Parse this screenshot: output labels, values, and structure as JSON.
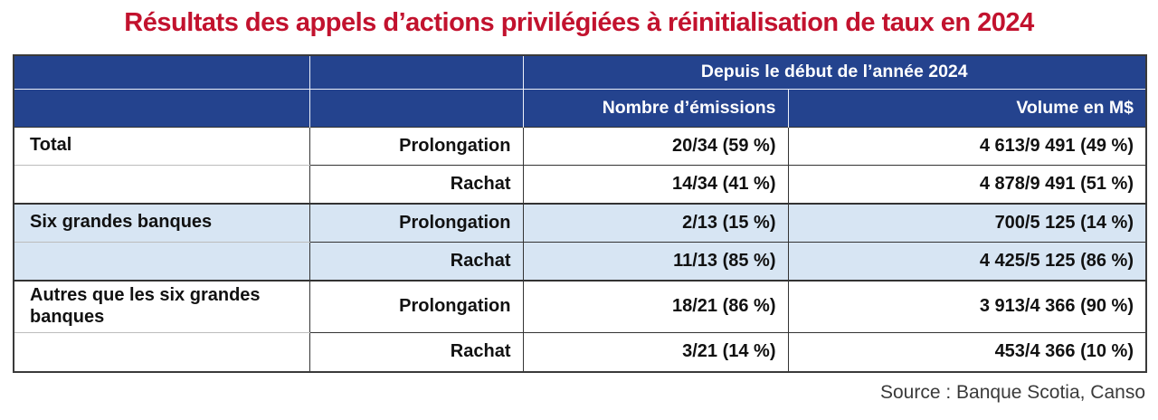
{
  "title": "Résultats des appels d’actions privilégiées à réinitialisation de taux en 2024",
  "source": "Source : Banque Scotia, Canso",
  "colors": {
    "title_red": "#C2122E",
    "header_blue": "#24438E",
    "shaded_row_blue": "#D7E5F3",
    "border_dark": "#3A3A3A"
  },
  "table": {
    "header": {
      "group_label": "Depuis le début de l’année 2024",
      "col_emissions": "Nombre d’émissions",
      "col_volume": "Volume en M$"
    },
    "groups": [
      {
        "label": "Total",
        "shaded": false,
        "rows": [
          {
            "type": "Prolongation",
            "emissions": "20/34 (59 %)",
            "volume": "4 613/9 491 (49 %)"
          },
          {
            "type": "Rachat",
            "emissions": "14/34 (41 %)",
            "volume": "4 878/9 491 (51 %)"
          }
        ]
      },
      {
        "label": "Six grandes banques",
        "shaded": true,
        "rows": [
          {
            "type": "Prolongation",
            "emissions": "2/13 (15 %)",
            "volume": "700/5 125 (14 %)"
          },
          {
            "type": "Rachat",
            "emissions": "11/13 (85 %)",
            "volume": "4 425/5 125 (86 %)"
          }
        ]
      },
      {
        "label": "Autres que les six grandes banques",
        "shaded": false,
        "rows": [
          {
            "type": "Prolongation",
            "emissions": "18/21 (86 %)",
            "volume": "3 913/4 366 (90 %)"
          },
          {
            "type": "Rachat",
            "emissions": "3/21 (14 %)",
            "volume": "453/4 366 (10 %)"
          }
        ]
      }
    ]
  },
  "chart_data": {
    "type": "table",
    "title": "Résultats des appels d’actions privilégiées à réinitialisation de taux en 2024",
    "column_group_header": "Depuis le début de l’année 2024",
    "columns": [
      "",
      "",
      "Nombre d’émissions",
      "Volume en M$"
    ],
    "rows": [
      [
        "Total",
        "Prolongation",
        "20/34 (59 %)",
        "4 613/9 491 (49 %)"
      ],
      [
        "Total",
        "Rachat",
        "14/34 (41 %)",
        "4 878/9 491 (51 %)"
      ],
      [
        "Six grandes banques",
        "Prolongation",
        "2/13 (15 %)",
        "700/5 125 (14 %)"
      ],
      [
        "Six grandes banques",
        "Rachat",
        "11/13 (85 %)",
        "4 425/5 125 (86 %)"
      ],
      [
        "Autres que les six grandes banques",
        "Prolongation",
        "18/21 (86 %)",
        "3 913/4 366 (90 %)"
      ],
      [
        "Autres que les six grandes banques",
        "Rachat",
        "3/21 (14 %)",
        "453/4 366 (10 %)"
      ]
    ],
    "source": "Source : Banque Scotia, Canso"
  }
}
